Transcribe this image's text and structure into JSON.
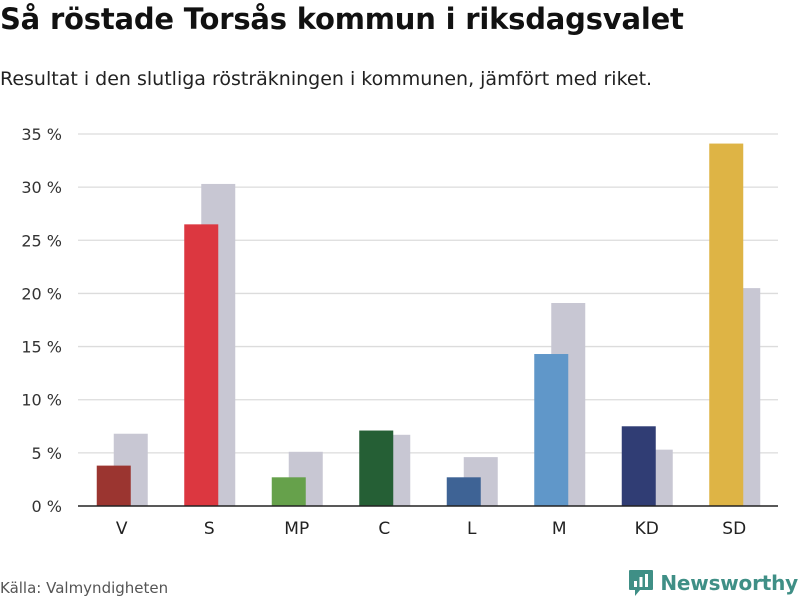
{
  "brand": {
    "name": "Newsworthy",
    "color": "#3f8f86",
    "icon": "bar-chart-speech-bubble-icon"
  },
  "footer": {
    "source": "Källa: Valmyndigheten"
  },
  "chart_data": {
    "type": "bar",
    "title": "Så röstade Torsås kommun i riksdagsvalet",
    "subtitle": "Resultat i den slutliga rösträkningen i kommunen, jämfört med riket.",
    "xlabel": "",
    "ylabel": "",
    "categories": [
      "V",
      "S",
      "MP",
      "C",
      "L",
      "M",
      "KD",
      "SD"
    ],
    "ylim": [
      0,
      35
    ],
    "yticks": [
      0,
      5,
      10,
      15,
      20,
      25,
      30,
      35
    ],
    "ytick_labels": [
      "0 %",
      "5 %",
      "10 %",
      "15 %",
      "20 %",
      "25 %",
      "30 %",
      "35 %"
    ],
    "grid": true,
    "legend": "none",
    "series": [
      {
        "values": [
          3.8,
          26.5,
          2.7,
          7.1,
          2.7,
          14.3,
          7.5,
          34.1
        ],
        "colors": [
          "#9b3530",
          "#dc3740",
          "#66a14b",
          "#255f35",
          "#3e6395",
          "#6097c9",
          "#303d74",
          "#deb445"
        ]
      },
      {
        "values": [
          6.8,
          30.3,
          5.1,
          6.7,
          4.6,
          19.1,
          5.3,
          20.5
        ],
        "color": "#c8c7d3"
      }
    ]
  }
}
